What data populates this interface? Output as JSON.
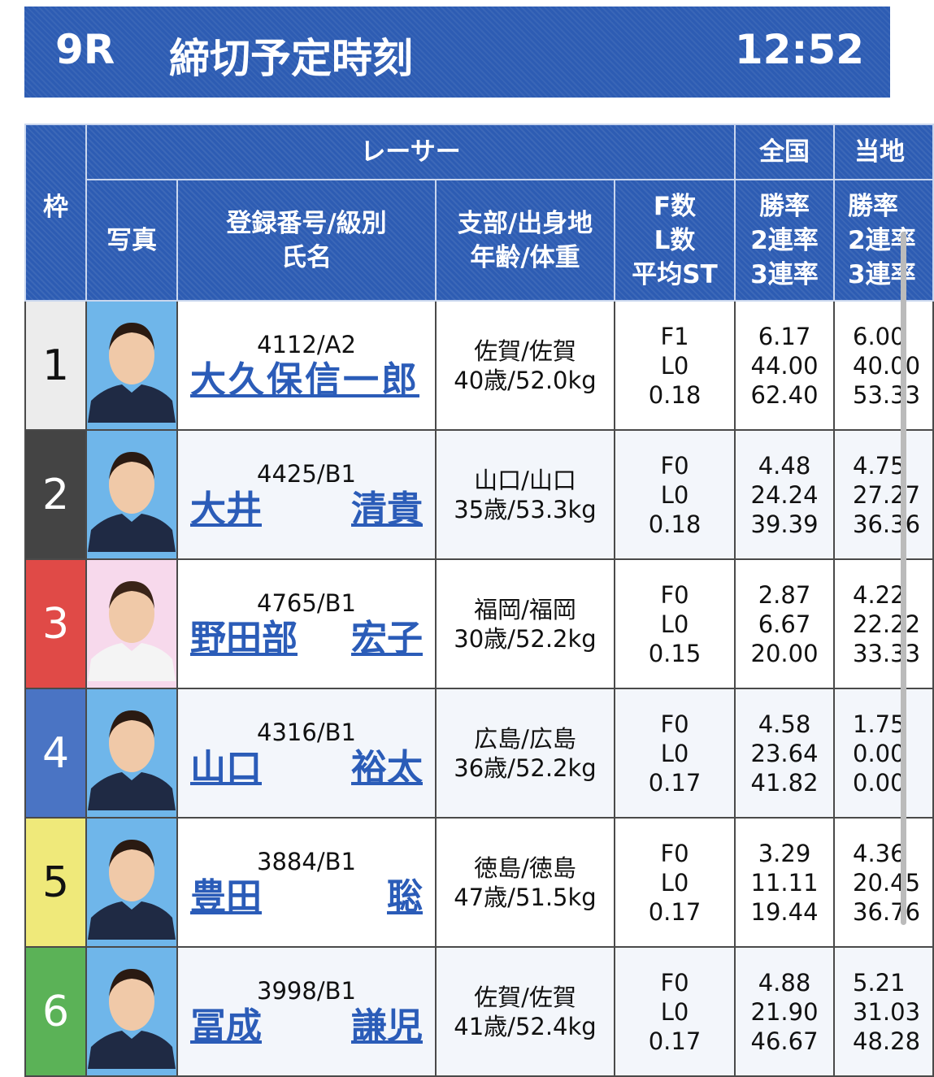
{
  "header": {
    "race": "9R",
    "label": "締切予定時刻",
    "time": "12:52"
  },
  "table": {
    "headers": {
      "frame": "枠",
      "racer": "レーサー",
      "photo": "写真",
      "id": [
        "登録番号/級別",
        "氏名"
      ],
      "branch": [
        "支部/出身地",
        "年齢/体重"
      ],
      "f": [
        "F数",
        "L数",
        "平均ST"
      ],
      "national": {
        "title": "全国",
        "labels": [
          "勝率",
          "2連率",
          "3連率"
        ]
      },
      "local": {
        "title": "当地",
        "labels": [
          "勝率",
          "2連率",
          "3連率"
        ]
      }
    },
    "rows": [
      {
        "frame": "1",
        "id": "4112/A2",
        "name": [
          "大久保信一郎"
        ],
        "branch": "佐賀/佐賀",
        "age": "40歳/52.0kg",
        "f": [
          "F1",
          "L0",
          "0.18"
        ],
        "national": [
          "6.17",
          "44.00",
          "62.40"
        ],
        "local": [
          "6.00",
          "40.00",
          "53.33"
        ]
      },
      {
        "frame": "2",
        "id": "4425/B1",
        "name": [
          "大井",
          "清貴"
        ],
        "branch": "山口/山口",
        "age": "35歳/53.3kg",
        "f": [
          "F0",
          "L0",
          "0.18"
        ],
        "national": [
          "4.48",
          "24.24",
          "39.39"
        ],
        "local": [
          "4.75",
          "27.27",
          "36.36"
        ]
      },
      {
        "frame": "3",
        "id": "4765/B1",
        "name": [
          "野田部",
          "宏子"
        ],
        "branch": "福岡/福岡",
        "age": "30歳/52.2kg",
        "f": [
          "F0",
          "L0",
          "0.15"
        ],
        "national": [
          "2.87",
          "6.67",
          "20.00"
        ],
        "local": [
          "4.22",
          "22.22",
          "33.33"
        ]
      },
      {
        "frame": "4",
        "id": "4316/B1",
        "name": [
          "山口",
          "裕太"
        ],
        "branch": "広島/広島",
        "age": "36歳/52.2kg",
        "f": [
          "F0",
          "L0",
          "0.17"
        ],
        "national": [
          "4.58",
          "23.64",
          "41.82"
        ],
        "local": [
          "1.75",
          "0.00",
          "0.00"
        ]
      },
      {
        "frame": "5",
        "id": "3884/B1",
        "name": [
          "豊田",
          "聡"
        ],
        "branch": "徳島/徳島",
        "age": "47歳/51.5kg",
        "f": [
          "F0",
          "L0",
          "0.17"
        ],
        "national": [
          "3.29",
          "11.11",
          "19.44"
        ],
        "local": [
          "4.36",
          "20.45",
          "36.76"
        ]
      },
      {
        "frame": "6",
        "id": "3998/B1",
        "name": [
          "冨成",
          "謙児"
        ],
        "branch": "佐賀/佐賀",
        "age": "41歳/52.4kg",
        "f": [
          "F0",
          "L0",
          "0.17"
        ],
        "national": [
          "4.88",
          "21.90",
          "46.67"
        ],
        "local": [
          "5.21",
          "31.03",
          "48.28"
        ]
      }
    ]
  }
}
